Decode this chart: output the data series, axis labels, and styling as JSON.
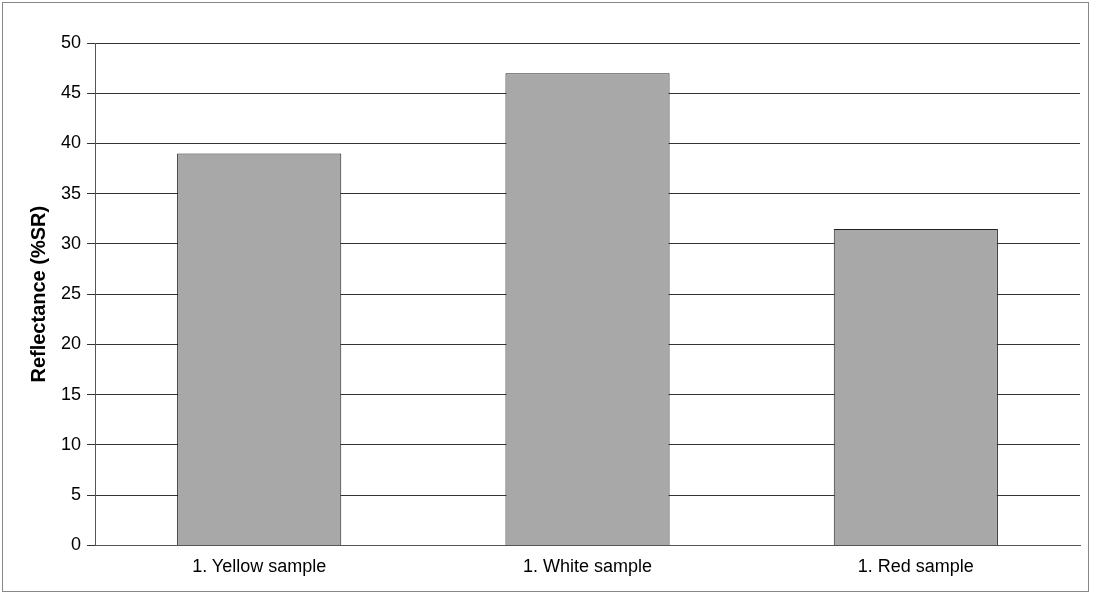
{
  "chart_data": {
    "type": "bar",
    "ylabel": "Reflectance (%SR)",
    "categories": [
      "1. Yellow sample",
      "1. White sample",
      "1. Red sample"
    ],
    "values": [
      39,
      47,
      31.5
    ],
    "color": "#a8a8a8",
    "ylim": [
      0,
      50
    ],
    "yticks": [
      0,
      5,
      10,
      15,
      20,
      25,
      30,
      35,
      40,
      45,
      50
    ],
    "grid": "y",
    "legend": false
  }
}
